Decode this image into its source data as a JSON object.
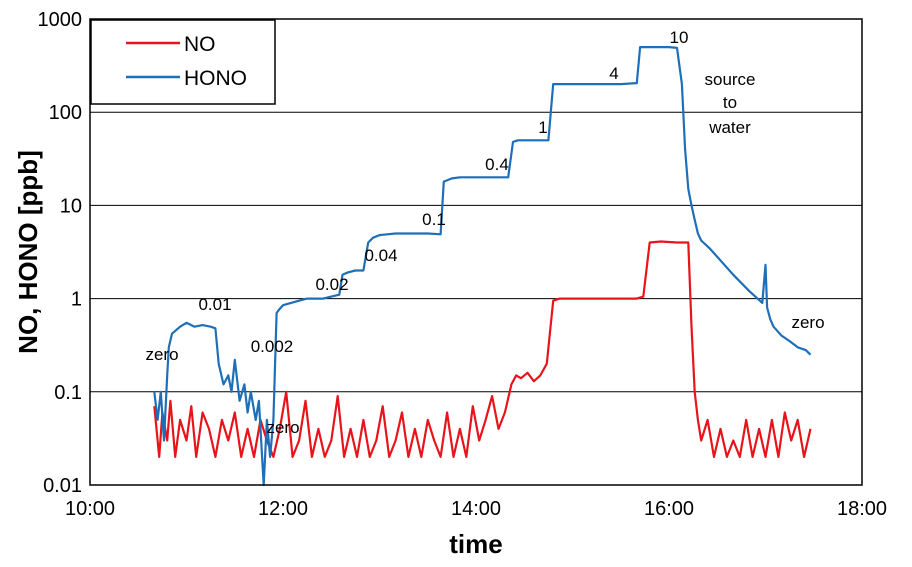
{
  "chart_data": {
    "type": "line",
    "title": "",
    "xlabel": "time",
    "ylabel": "NO, HONO [ppb]",
    "x_unit": "time of day (HH:MM)",
    "xlim": [
      "10:00",
      "18:00"
    ],
    "ylim": [
      0.01,
      1000
    ],
    "y_scale": "log",
    "x_ticks": [
      "10:00",
      "12:00",
      "14:00",
      "16:00",
      "18:00"
    ],
    "y_ticks": [
      "0.01",
      "0.1",
      "1",
      "10",
      "100",
      "1000"
    ],
    "grid": {
      "horizontal": true,
      "vertical": false
    },
    "legend": {
      "position": "top-left",
      "entries": [
        "NO",
        "HONO"
      ]
    },
    "series": [
      {
        "name": "HONO",
        "color": "#1f6fb8",
        "x": [
          "10:40",
          "10:42",
          "10:44",
          "10:46",
          "10:48",
          "10:49",
          "10:51",
          "10:53",
          "10:56",
          "11:00",
          "11:05",
          "11:10",
          "11:15",
          "11:18",
          "11:20",
          "11:23",
          "11:26",
          "11:28",
          "11:30",
          "11:33",
          "11:36",
          "11:38",
          "11:40",
          "11:43",
          "11:45",
          "11:48",
          "11:50",
          "11:52",
          "11:54",
          "11:56",
          "11:58",
          "12:00",
          "12:05",
          "12:10",
          "12:15",
          "12:20",
          "12:25",
          "12:30",
          "12:35",
          "12:37",
          "12:40",
          "12:45",
          "12:50",
          "12:53",
          "12:56",
          "13:00",
          "13:10",
          "13:20",
          "13:30",
          "13:38",
          "13:40",
          "13:45",
          "13:50",
          "14:00",
          "14:10",
          "14:20",
          "14:23",
          "14:26",
          "14:30",
          "14:40",
          "14:45",
          "14:48",
          "14:52",
          "15:00",
          "15:10",
          "15:20",
          "15:30",
          "15:40",
          "15:42",
          "15:45",
          "15:50",
          "16:00",
          "16:05",
          "16:08",
          "16:10",
          "16:12",
          "16:14",
          "16:16",
          "16:18",
          "16:20",
          "16:25",
          "16:30",
          "16:40",
          "16:50",
          "16:55",
          "16:58",
          "17:00",
          "17:01",
          "17:03",
          "17:05",
          "17:10",
          "17:15",
          "17:20",
          "17:25",
          "17:28"
        ],
        "values": [
          0.1,
          0.05,
          0.1,
          0.03,
          0.15,
          0.3,
          0.42,
          0.45,
          0.5,
          0.55,
          0.5,
          0.52,
          0.5,
          0.48,
          0.2,
          0.12,
          0.15,
          0.1,
          0.22,
          0.08,
          0.12,
          0.06,
          0.1,
          0.05,
          0.08,
          0.01,
          0.05,
          0.02,
          0.05,
          0.7,
          0.78,
          0.85,
          0.9,
          0.95,
          1.0,
          1.0,
          1.0,
          1.05,
          1.1,
          1.8,
          1.9,
          2.0,
          2.0,
          4.0,
          4.5,
          4.8,
          5.0,
          5.0,
          5.0,
          4.9,
          18,
          19.5,
          20,
          20,
          20,
          20,
          48,
          50,
          50,
          50,
          50,
          200,
          200,
          200,
          200,
          200,
          200,
          205,
          500,
          500,
          500,
          500,
          490,
          200,
          40,
          15,
          10,
          7,
          5,
          4.2,
          3.5,
          2.8,
          1.8,
          1.2,
          1.0,
          0.9,
          2.3,
          0.8,
          0.6,
          0.5,
          0.4,
          0.35,
          0.3,
          0.28,
          0.25
        ]
      },
      {
        "name": "NO",
        "color": "#e8141b",
        "x": [
          "10:40",
          "10:43",
          "10:45",
          "10:48",
          "10:50",
          "10:53",
          "10:56",
          "11:00",
          "11:03",
          "11:06",
          "11:10",
          "11:14",
          "11:18",
          "11:22",
          "11:26",
          "11:30",
          "11:34",
          "11:38",
          "11:42",
          "11:46",
          "11:50",
          "11:54",
          "11:58",
          "12:02",
          "12:06",
          "12:10",
          "12:14",
          "12:18",
          "12:22",
          "12:26",
          "12:30",
          "12:34",
          "12:38",
          "12:42",
          "12:46",
          "12:50",
          "12:54",
          "12:58",
          "13:02",
          "13:06",
          "13:10",
          "13:14",
          "13:18",
          "13:22",
          "13:26",
          "13:30",
          "13:34",
          "13:38",
          "13:42",
          "13:46",
          "13:50",
          "13:54",
          "13:58",
          "14:02",
          "14:06",
          "14:10",
          "14:14",
          "14:18",
          "14:22",
          "14:25",
          "14:28",
          "14:32",
          "14:36",
          "14:40",
          "14:44",
          "14:48",
          "14:52",
          "15:00",
          "15:10",
          "15:20",
          "15:30",
          "15:40",
          "15:44",
          "15:48",
          "15:55",
          "16:05",
          "16:12",
          "16:14",
          "16:16",
          "16:18",
          "16:20",
          "16:24",
          "16:28",
          "16:32",
          "16:36",
          "16:40",
          "16:44",
          "16:48",
          "16:52",
          "16:56",
          "17:00",
          "17:04",
          "17:08",
          "17:12",
          "17:16",
          "17:20",
          "17:24",
          "17:28"
        ],
        "values": [
          0.07,
          0.02,
          0.06,
          0.03,
          0.08,
          0.02,
          0.05,
          0.03,
          0.07,
          0.02,
          0.06,
          0.04,
          0.02,
          0.05,
          0.03,
          0.06,
          0.02,
          0.04,
          0.02,
          0.05,
          0.03,
          0.02,
          0.04,
          0.1,
          0.02,
          0.03,
          0.08,
          0.02,
          0.04,
          0.02,
          0.03,
          0.09,
          0.02,
          0.04,
          0.02,
          0.05,
          0.02,
          0.03,
          0.07,
          0.02,
          0.03,
          0.06,
          0.02,
          0.04,
          0.02,
          0.05,
          0.03,
          0.02,
          0.06,
          0.02,
          0.04,
          0.02,
          0.07,
          0.03,
          0.05,
          0.09,
          0.04,
          0.06,
          0.12,
          0.15,
          0.14,
          0.16,
          0.13,
          0.15,
          0.2,
          0.95,
          1.0,
          1.0,
          1.0,
          1.0,
          1.0,
          1.0,
          1.05,
          4.0,
          4.1,
          4.0,
          4.0,
          0.5,
          0.1,
          0.05,
          0.03,
          0.05,
          0.02,
          0.04,
          0.02,
          0.03,
          0.02,
          0.05,
          0.02,
          0.04,
          0.02,
          0.05,
          0.02,
          0.06,
          0.03,
          0.05,
          0.02,
          0.04
        ]
      }
    ],
    "annotations": [
      "zero",
      "0.01",
      "0.002",
      "zero",
      "0.02",
      "0.04",
      "0.1",
      "0.4",
      "1",
      "4",
      "10",
      "source",
      "to",
      "water",
      "zero"
    ]
  }
}
